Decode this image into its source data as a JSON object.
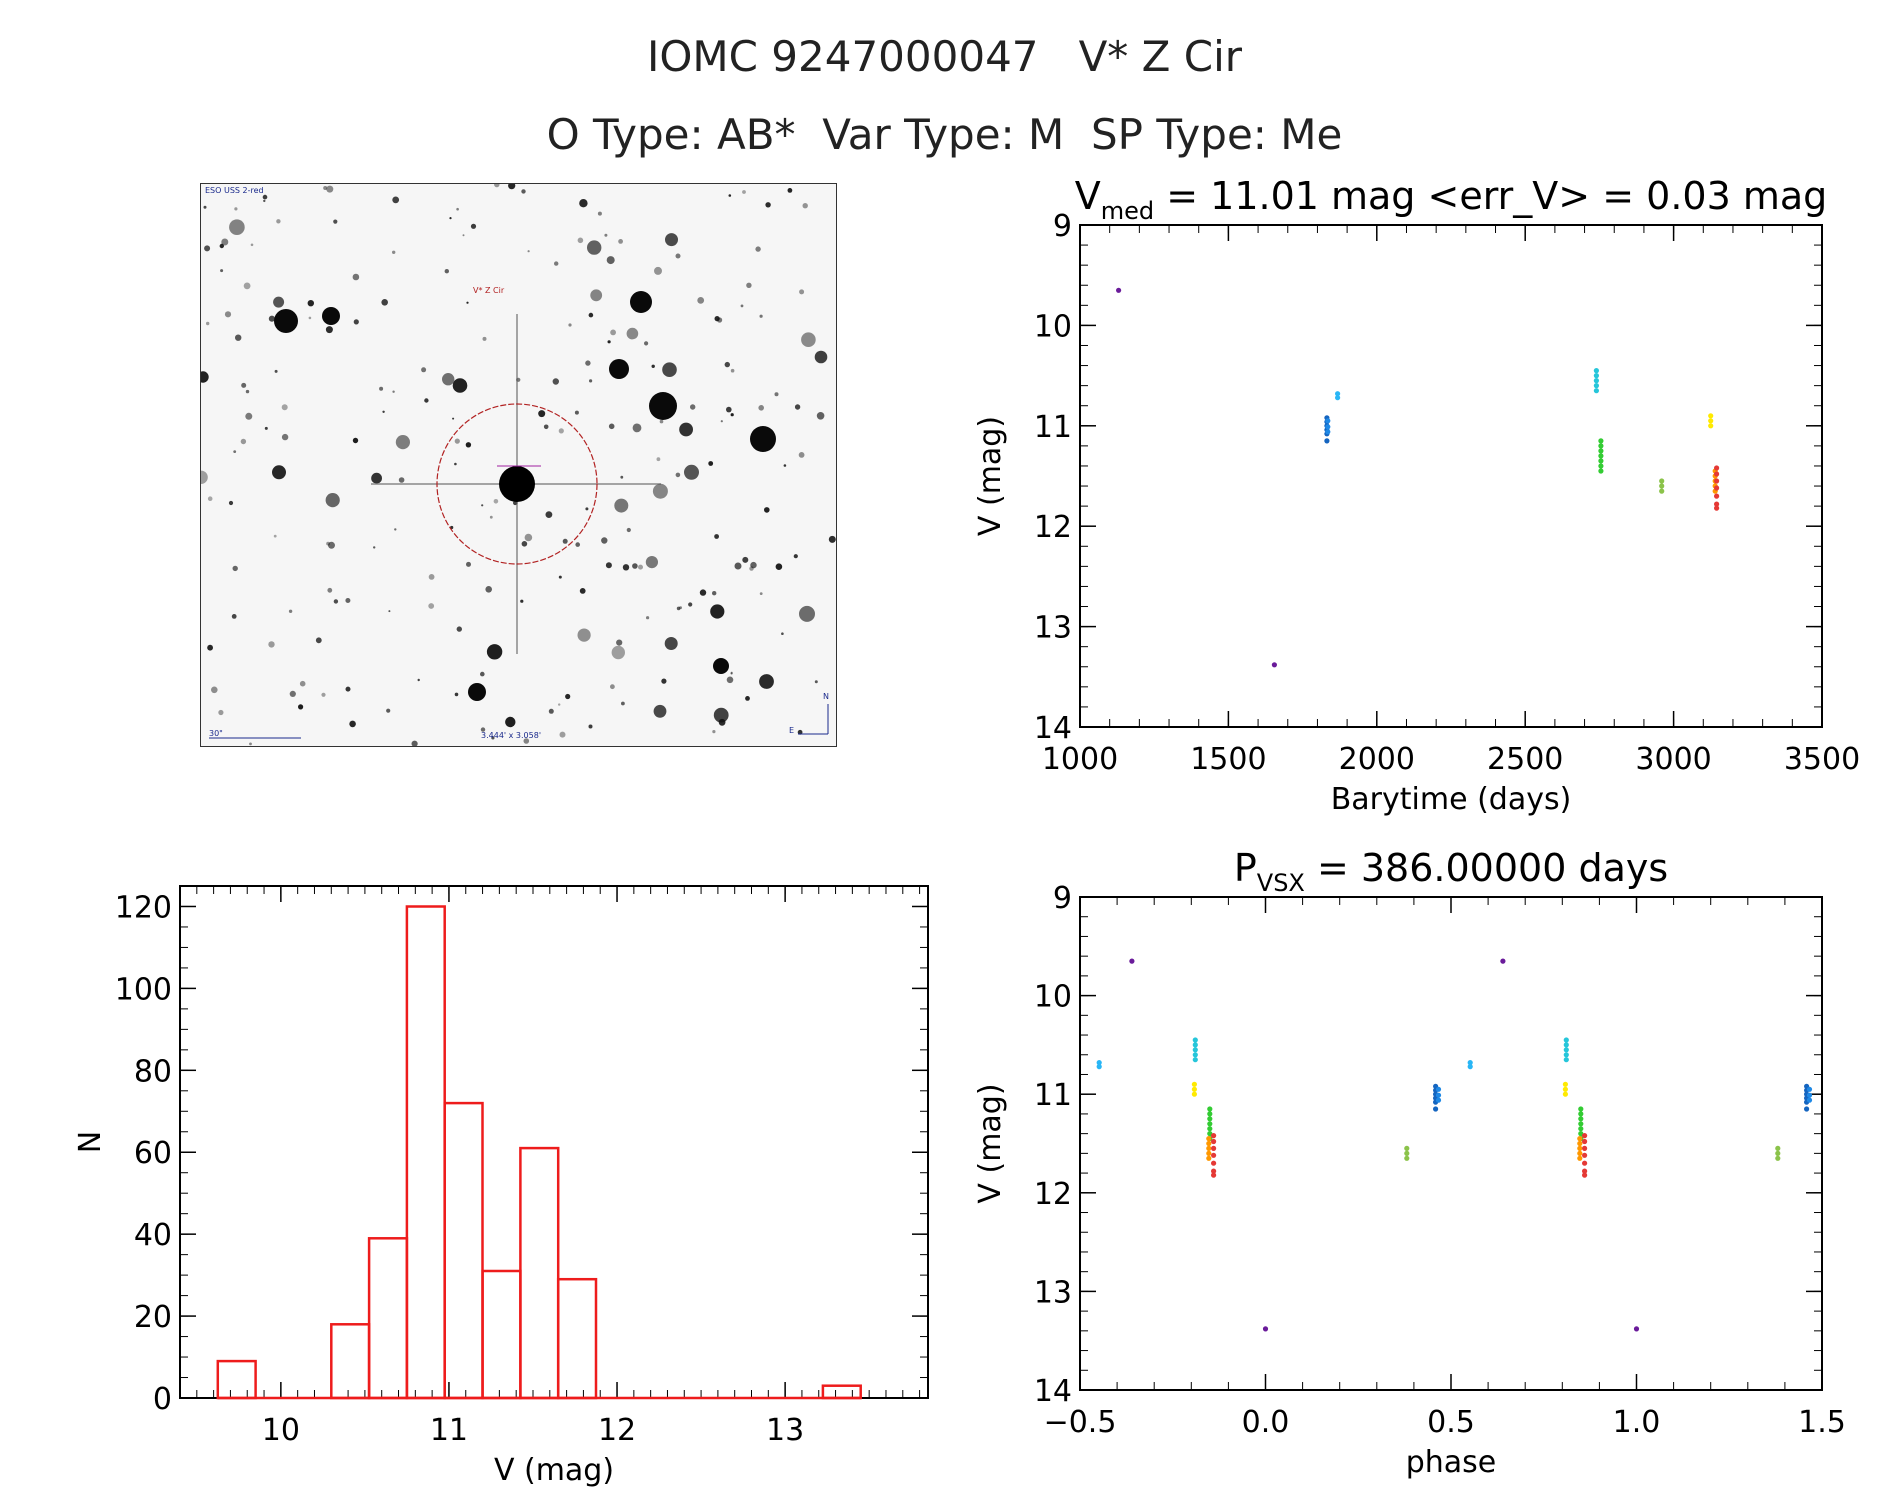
{
  "header": {
    "line1": "IOMC 9247000047   V* Z Cir",
    "line2": "O Type: AB*  Var Type: M  SP Type: Me"
  },
  "image_panel": {
    "survey_label": "ESO USS 2-red",
    "target_label": "V* Z Cir",
    "scale_label": "30\"",
    "fov_label": "3.444' x 3.058'",
    "compass_n": "N",
    "compass_e": "E"
  },
  "colors": {
    "histogram": "#ee1c1c",
    "axis": "#000000",
    "target_circle": "#b22222"
  },
  "chart_data": [
    {
      "id": "lightcurve",
      "type": "scatter",
      "title_main": "V",
      "title_sub": "med",
      "title_rest": " = 11.01 mag <err_V> = 0.03 mag",
      "xlabel": "Barytime (days)",
      "ylabel": "V (mag)",
      "xlim": [
        1000,
        3500
      ],
      "ylim": [
        14,
        9
      ],
      "xticks": [
        1000,
        1500,
        2000,
        2500,
        3000,
        3500
      ],
      "yticks": [
        9,
        10,
        11,
        12,
        13,
        14
      ],
      "groups": [
        {
          "t": 1130,
          "v": [
            9.65
          ],
          "color": "#6a1b9a"
        },
        {
          "t": 1655,
          "v": [
            13.38
          ],
          "color": "#6a1b9a"
        },
        {
          "t": 1832,
          "v": [
            10.92,
            10.96,
            11.0,
            11.04,
            11.08,
            11.15
          ],
          "color": "#1565c0"
        },
        {
          "t": 1835,
          "v": [
            10.95,
            11.01,
            11.06
          ],
          "color": "#1e88e5"
        },
        {
          "t": 1868,
          "v": [
            10.68,
            10.72
          ],
          "color": "#29b6f6"
        },
        {
          "t": 2740,
          "v": [
            10.45,
            10.5,
            10.55,
            10.6,
            10.65
          ],
          "color": "#26c6da"
        },
        {
          "t": 2755,
          "v": [
            11.15,
            11.2,
            11.25,
            11.3,
            11.35,
            11.4,
            11.45
          ],
          "color": "#33cc33"
        },
        {
          "t": 2960,
          "v": [
            11.55,
            11.6,
            11.65
          ],
          "color": "#8bc34a"
        },
        {
          "t": 3125,
          "v": [
            10.9,
            10.95,
            11.0
          ],
          "color": "#ffea00"
        },
        {
          "t": 3140,
          "v": [
            11.45,
            11.5,
            11.55,
            11.6,
            11.65
          ],
          "color": "#ff9800"
        },
        {
          "t": 3145,
          "v": [
            11.42,
            11.48,
            11.55,
            11.62,
            11.7,
            11.78,
            11.82
          ],
          "color": "#e53935"
        }
      ]
    },
    {
      "id": "phase",
      "type": "scatter",
      "title_main": "P",
      "title_sub": "VSX",
      "title_rest": " = 386.00000 days",
      "xlabel": "phase",
      "ylabel": "V (mag)",
      "xlim": [
        -0.5,
        1.5
      ],
      "ylim": [
        14,
        9
      ],
      "xticks": [
        -0.5,
        0.0,
        0.5,
        1.0,
        1.5
      ],
      "xtick_labels": [
        "−0.5",
        "0.0",
        "0.5",
        "1.0",
        "1.5"
      ],
      "yticks": [
        9,
        10,
        11,
        12,
        13,
        14
      ],
      "period": 386.0,
      "epoch": 1655
    },
    {
      "id": "histogram",
      "type": "bar",
      "xlabel": "V (mag)",
      "ylabel": "N",
      "xlim": [
        9.4,
        13.85
      ],
      "ylim": [
        0,
        125
      ],
      "xticks": [
        10,
        11,
        12,
        13
      ],
      "yticks": [
        0,
        20,
        40,
        60,
        80,
        100,
        120
      ],
      "bin_edges": [
        9.625,
        9.85,
        10.075,
        10.3,
        10.525,
        10.75,
        10.975,
        11.2,
        11.425,
        11.65,
        11.875,
        12.1,
        12.325,
        12.55,
        12.775,
        13.0,
        13.225,
        13.45
      ],
      "counts": [
        9,
        0,
        0,
        18,
        39,
        120,
        72,
        31,
        61,
        29,
        0,
        0,
        0,
        0,
        0,
        0,
        3
      ]
    }
  ]
}
